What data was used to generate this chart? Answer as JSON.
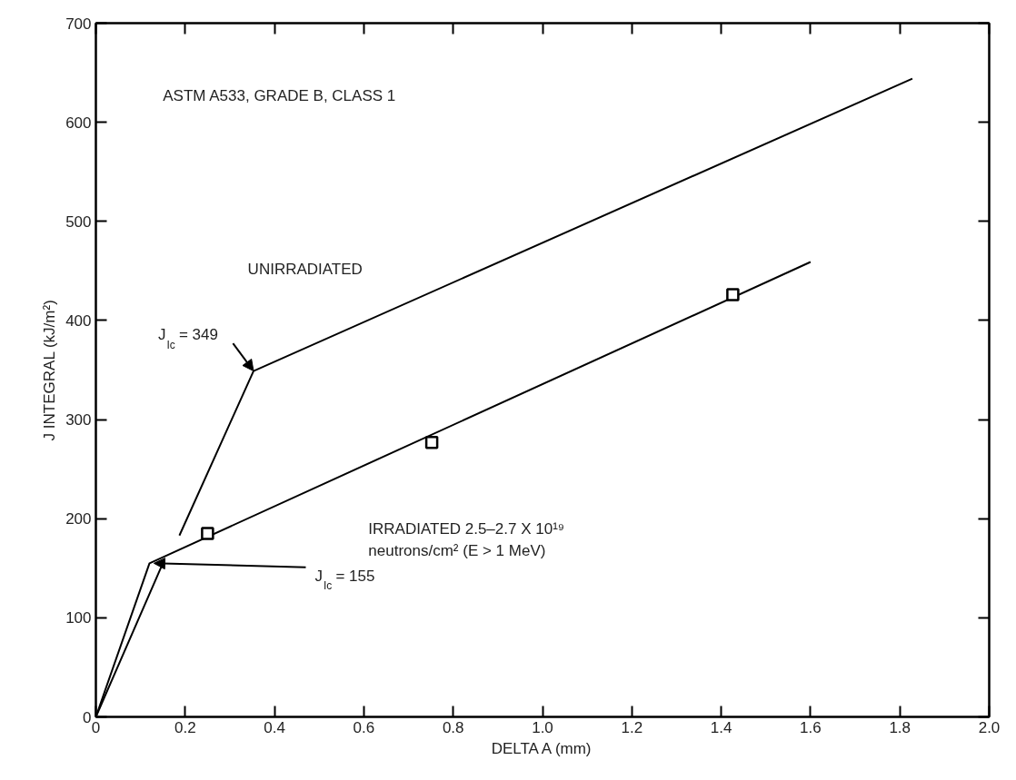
{
  "chart_data": {
    "type": "line",
    "xlabel": "DELTA A (mm)",
    "ylabel": "J INTEGRAL (kJ/m²)",
    "xlim": [
      0,
      2.0
    ],
    "ylim": [
      0,
      700
    ],
    "xticks": [
      0,
      0.2,
      0.4,
      0.6,
      0.8,
      {
        "value": 1.0,
        "label": "1.0"
      },
      1.2,
      1.4,
      1.6,
      1.8,
      {
        "value": 2.0,
        "label": "2.0"
      }
    ],
    "yticks": [
      0,
      100,
      200,
      300,
      400,
      500,
      600,
      700
    ],
    "grid": false,
    "line_style": "solid",
    "series": [
      {
        "color": "#000000",
        "marker": "none",
        "x": [
          0,
          0.147,
          0.167,
          0.187,
          0.353,
          1.828
        ],
        "values": [
          0,
          152,
          null,
          183,
          349,
          644
        ]
      },
      {
        "color": "#000000",
        "marker": "none",
        "x": [
          0,
          0.12,
          1.6
        ],
        "values": [
          0,
          155,
          459
        ]
      },
      {
        "type": "scatter",
        "color": "#000000",
        "marker": "square",
        "x": [
          0.25,
          0.752,
          1.426
        ],
        "values": [
          185,
          277,
          426
        ]
      }
    ],
    "annotations": [
      "ASTM A533, GRADE B, CLASS 1",
      "UNIRRADIATED",
      "IRRADIATED 2.5–2.7 X 10¹⁹\nneutrons/cm² (E > 1 MeV)",
      {
        "text": "J$_{Ic}$ = 349",
        "x": 0.353,
        "y": 349
      },
      {
        "text": "J$_{Ic}$ = 155",
        "x": 0.12,
        "y": 155
      }
    ]
  }
}
